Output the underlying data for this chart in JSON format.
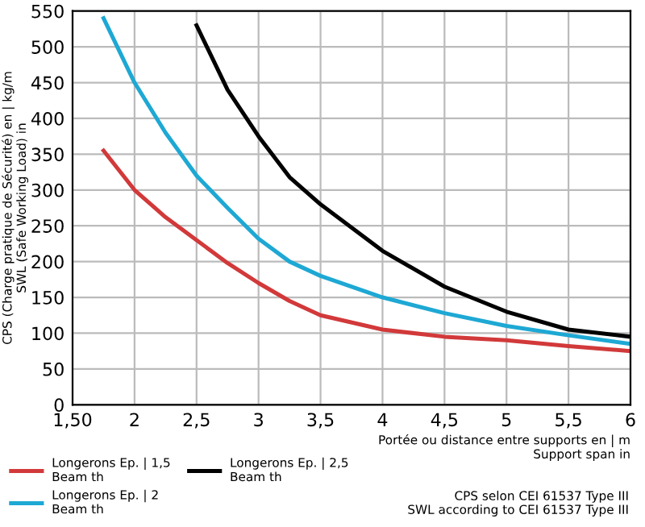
{
  "chart_data": {
    "type": "line",
    "xlabel": "Portée ou distance entre supports en | m\nSupport span in",
    "ylabel": "CPS (Charge pratique de Sécurité) en | kg/m\nSWL (Safe Working Load) in",
    "x": [
      1.75,
      2,
      2.25,
      2.5,
      2.75,
      3,
      3.25,
      3.5,
      4,
      4.5,
      5,
      5.5,
      6
    ],
    "series": [
      {
        "name": "Longerons Ep. | 1,5\nBeam th",
        "color": "#d2393a",
        "values": [
          355,
          300,
          262,
          230,
          198,
          170,
          145,
          125,
          105,
          95,
          90,
          82,
          75
        ]
      },
      {
        "name": "Longerons Ep. | 2\nBeam th",
        "color": "#1ea8d4",
        "values": [
          540,
          450,
          380,
          320,
          275,
          232,
          200,
          180,
          150,
          128,
          110,
          97,
          85
        ]
      },
      {
        "name": "Longerons Ep. | 2,5\nBeam th",
        "color": "#000000",
        "x": [
          2.5,
          2.75,
          3,
          3.25,
          3.5,
          4,
          4.5,
          5,
          5.5,
          6
        ],
        "values": [
          530,
          440,
          375,
          318,
          280,
          215,
          165,
          130,
          105,
          95
        ]
      }
    ],
    "xlim": [
      1.5,
      6
    ],
    "xticks": [
      {
        "value": 1.5,
        "label": "1,50"
      },
      2,
      {
        "value": 2.5,
        "label": "2,5"
      },
      3,
      {
        "value": 3.5,
        "label": "3,5"
      },
      4,
      {
        "value": 4.5,
        "label": "4,5"
      },
      5,
      {
        "value": 5.5,
        "label": "5,5"
      },
      6
    ],
    "ylim": [
      0,
      550
    ],
    "yticks": [
      0,
      50,
      100,
      150,
      200,
      250,
      300,
      350,
      400,
      450,
      500,
      550
    ],
    "grid": true,
    "legend": "bottom left",
    "line_style": "solid",
    "marker": "none",
    "annotations": [
      "CPS selon CEI 61537 Type III\nSWL according to CEI 61537 Type III"
    ]
  }
}
